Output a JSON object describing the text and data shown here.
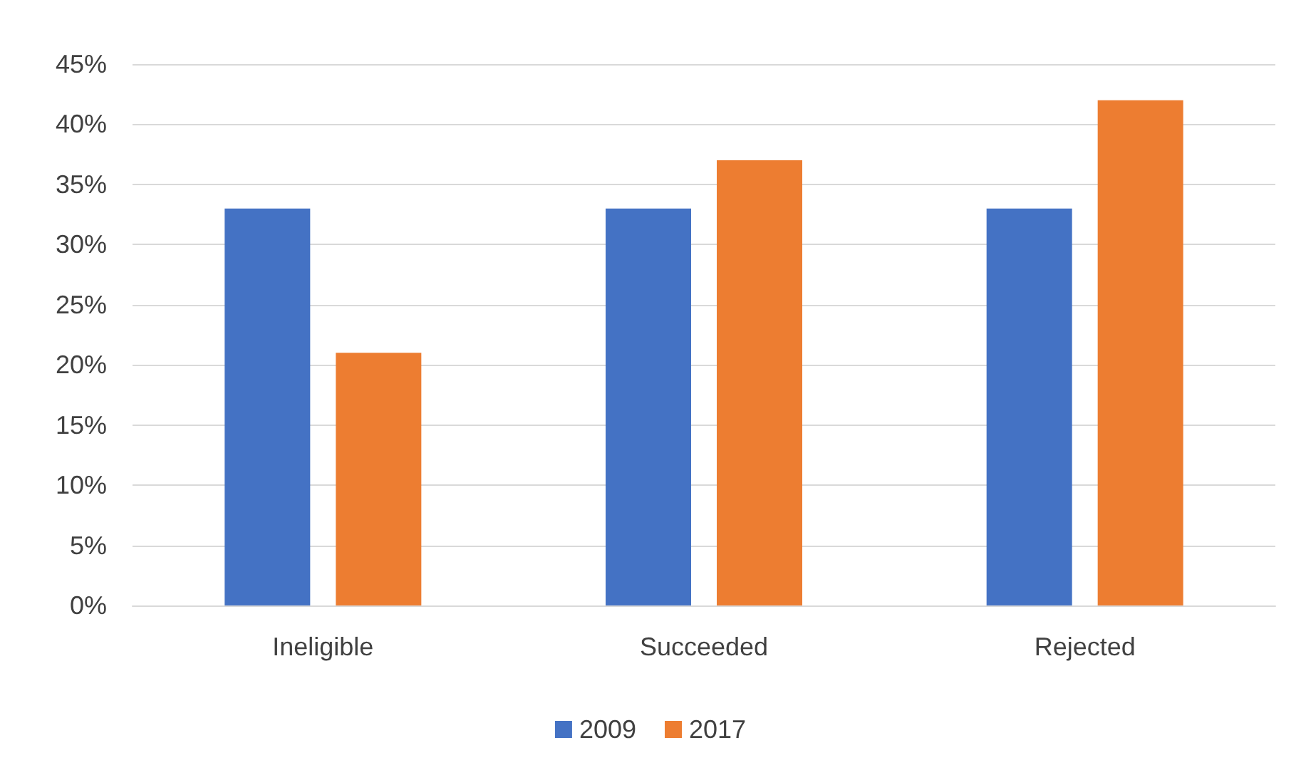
{
  "chart_data": {
    "type": "bar",
    "categories": [
      "Ineligible",
      "Succeeded",
      "Rejected"
    ],
    "series": [
      {
        "name": "2009",
        "color": "#4472c4",
        "values": [
          33,
          33,
          33
        ]
      },
      {
        "name": "2017",
        "color": "#ed7d31",
        "values": [
          21,
          37,
          42
        ]
      }
    ],
    "ylim": [
      0,
      45
    ],
    "yticks": [
      {
        "value": 0,
        "label": "0%"
      },
      {
        "value": 5,
        "label": "5%"
      },
      {
        "value": 10,
        "label": "10%"
      },
      {
        "value": 15,
        "label": "15%"
      },
      {
        "value": 20,
        "label": "20%"
      },
      {
        "value": 25,
        "label": "25%"
      },
      {
        "value": 30,
        "label": "30%"
      },
      {
        "value": 35,
        "label": "35%"
      },
      {
        "value": 40,
        "label": "40%"
      },
      {
        "value": 45,
        "label": "45%"
      }
    ],
    "grid": "y",
    "legend": "bottom"
  }
}
